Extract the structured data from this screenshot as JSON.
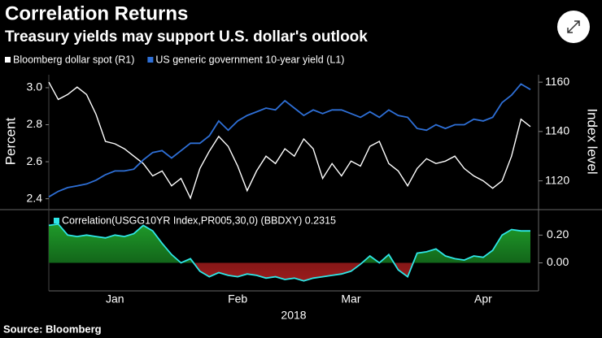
{
  "title": "Correlation Returns",
  "subtitle": "Treasury yields may support U.S. dollar's outlook",
  "source": "Source: Bloomberg",
  "chart_data": [
    {
      "type": "line",
      "ylabel": "Percent",
      "y2label": "Index level",
      "ylim": [
        2.35,
        3.07
      ],
      "yticks": [
        2.4,
        2.6,
        2.8,
        {
          "value": 3,
          "label": "3.0"
        }
      ],
      "y2lim": [
        1109,
        1163
      ],
      "y2ticks": [
        1120,
        1140,
        1160
      ],
      "series": [
        {
          "name": "Bloomberg dollar spot (R1)",
          "color": "#ffffff",
          "axis": "y2",
          "values": [
            1160,
            1153,
            1155,
            1158,
            1155,
            1147,
            1136,
            1135,
            1133,
            1130,
            1127,
            1122,
            1124,
            1118,
            1121,
            1113,
            1125,
            1132,
            1138,
            1134,
            1126,
            1116,
            1124,
            1130,
            1127,
            1133,
            1130,
            1137,
            1133,
            1121,
            1127,
            1122,
            1128,
            1126,
            1134,
            1136,
            1127,
            1124,
            1118,
            1125,
            1129,
            1127,
            1128,
            1130,
            1125,
            1122,
            1120,
            1117,
            1120,
            1130,
            1145,
            1142
          ]
        },
        {
          "name": "US generic government 10-year yield (L1)",
          "color": "#2e6fd6",
          "values": [
            2.41,
            2.44,
            2.46,
            2.47,
            2.48,
            2.5,
            2.53,
            2.55,
            2.55,
            2.56,
            2.61,
            2.65,
            2.66,
            2.62,
            2.66,
            2.7,
            2.7,
            2.74,
            2.82,
            2.77,
            2.82,
            2.85,
            2.87,
            2.89,
            2.88,
            2.93,
            2.89,
            2.85,
            2.88,
            2.86,
            2.88,
            2.88,
            2.86,
            2.84,
            2.87,
            2.84,
            2.88,
            2.85,
            2.84,
            2.78,
            2.77,
            2.8,
            2.78,
            2.8,
            2.8,
            2.83,
            2.82,
            2.84,
            2.92,
            2.96,
            3.02,
            2.99
          ]
        }
      ]
    },
    {
      "type": "area",
      "xlabel": "2018",
      "categories": [
        null,
        null,
        null,
        null,
        null,
        null,
        null,
        "Jan",
        null,
        null,
        null,
        null,
        null,
        null,
        null,
        null,
        null,
        null,
        null,
        null,
        "Feb",
        null,
        null,
        null,
        null,
        null,
        null,
        null,
        null,
        null,
        null,
        null,
        "Mar",
        null,
        null,
        null,
        null,
        null,
        null,
        null,
        null,
        null,
        null,
        null,
        null,
        null,
        "Apr",
        null,
        null,
        null,
        null,
        null
      ],
      "ylim": [
        -0.19,
        0.36
      ],
      "yticks": [
        {
          "value": 0,
          "label": "0.00"
        },
        {
          "value": 0.2,
          "label": "0.20"
        }
      ],
      "positive_color": "#1f9a2a",
      "negative_color": "#9a1c1c",
      "series": [
        {
          "name": "Correlation(USGG10YR Index,PR005,30,0) (BBDXY) 0.2315",
          "color": "#2ee6e6",
          "values": [
            0.27,
            0.28,
            0.2,
            0.19,
            0.2,
            0.19,
            0.18,
            0.2,
            0.19,
            0.21,
            0.27,
            0.23,
            0.14,
            0.06,
            0.0,
            0.03,
            -0.06,
            -0.1,
            -0.07,
            -0.09,
            -0.1,
            -0.08,
            -0.09,
            -0.11,
            -0.1,
            -0.12,
            -0.11,
            -0.13,
            -0.11,
            -0.1,
            -0.09,
            -0.08,
            -0.06,
            -0.01,
            0.05,
            0.0,
            0.06,
            -0.05,
            -0.1,
            0.07,
            0.08,
            0.1,
            0.05,
            0.03,
            0.02,
            0.05,
            0.04,
            0.09,
            0.2,
            0.24,
            0.23,
            0.23
          ]
        }
      ]
    }
  ]
}
